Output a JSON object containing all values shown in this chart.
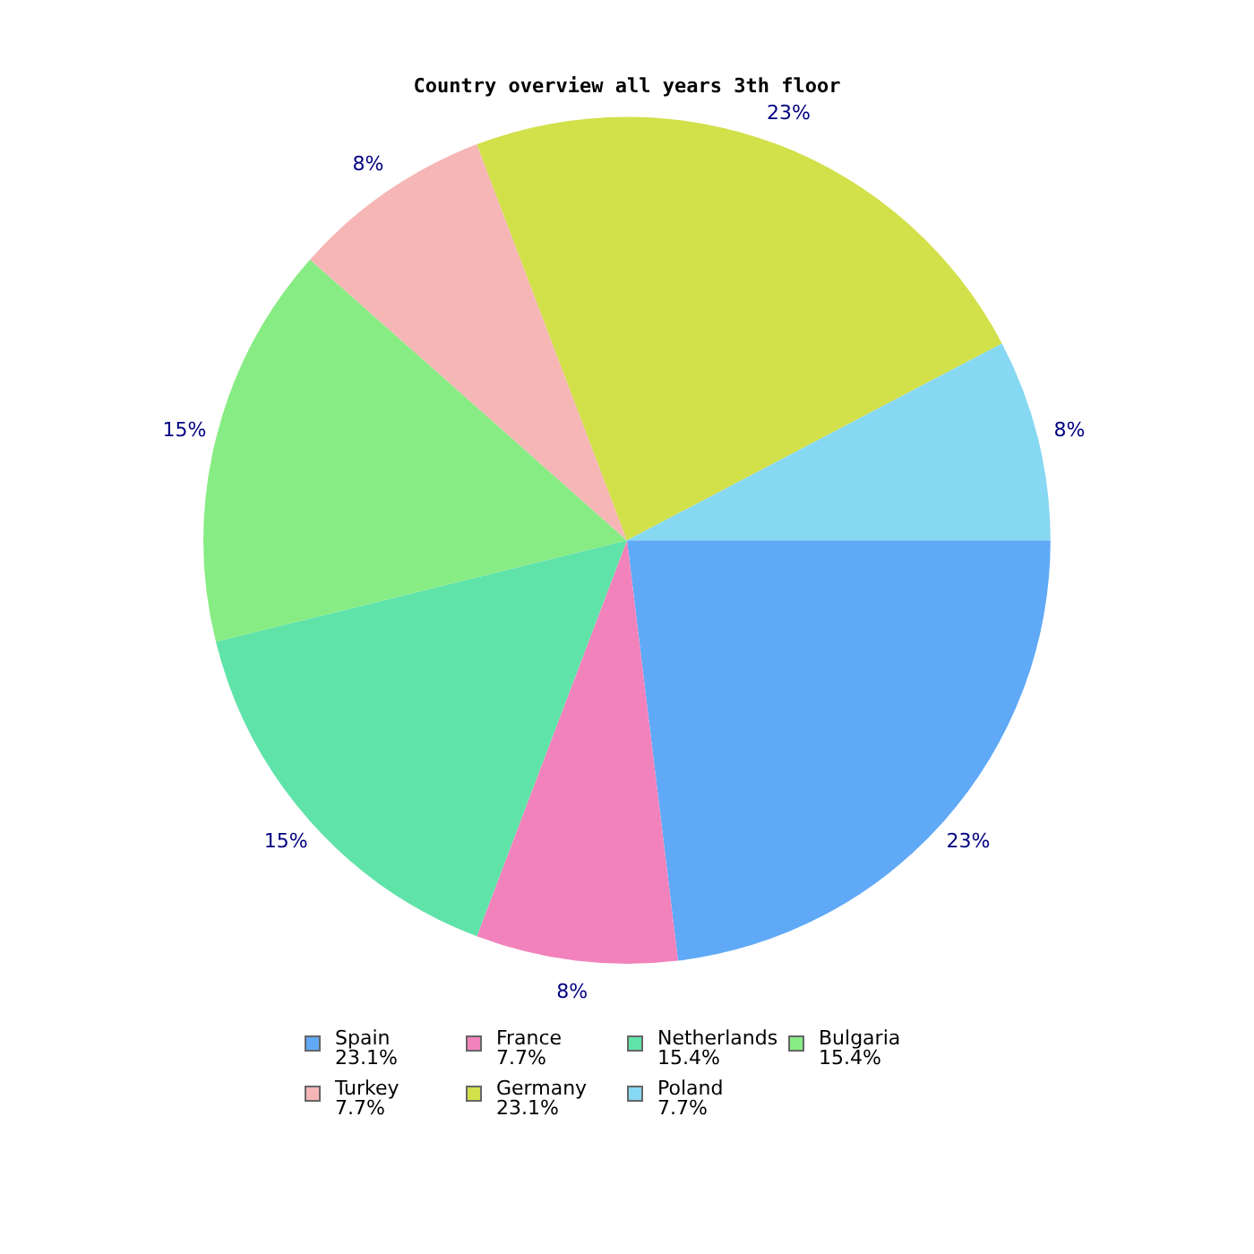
{
  "chart_data": {
    "type": "pie",
    "title": "Country overview all years 3th floor",
    "categories": [
      "Spain 23.1%",
      "France 7.7%",
      "Netherlands 15.4%",
      "Bulgaria 15.4%",
      "Turkey 7.7%",
      "Germany 23.1%",
      "Poland 7.7%"
    ],
    "values": [
      23.1,
      7.7,
      15.4,
      15.4,
      7.7,
      23.1,
      7.7
    ],
    "value_labels": [
      "23%",
      "8%",
      "15%",
      "15%",
      "8%",
      "23%",
      "8%"
    ],
    "colors": [
      "#60a9f6",
      "#f282bb",
      "#60e3a9",
      "#87ec83",
      "#f6b6b6",
      "#d2e04a",
      "#87d8f2"
    ],
    "legend": "bottom"
  }
}
